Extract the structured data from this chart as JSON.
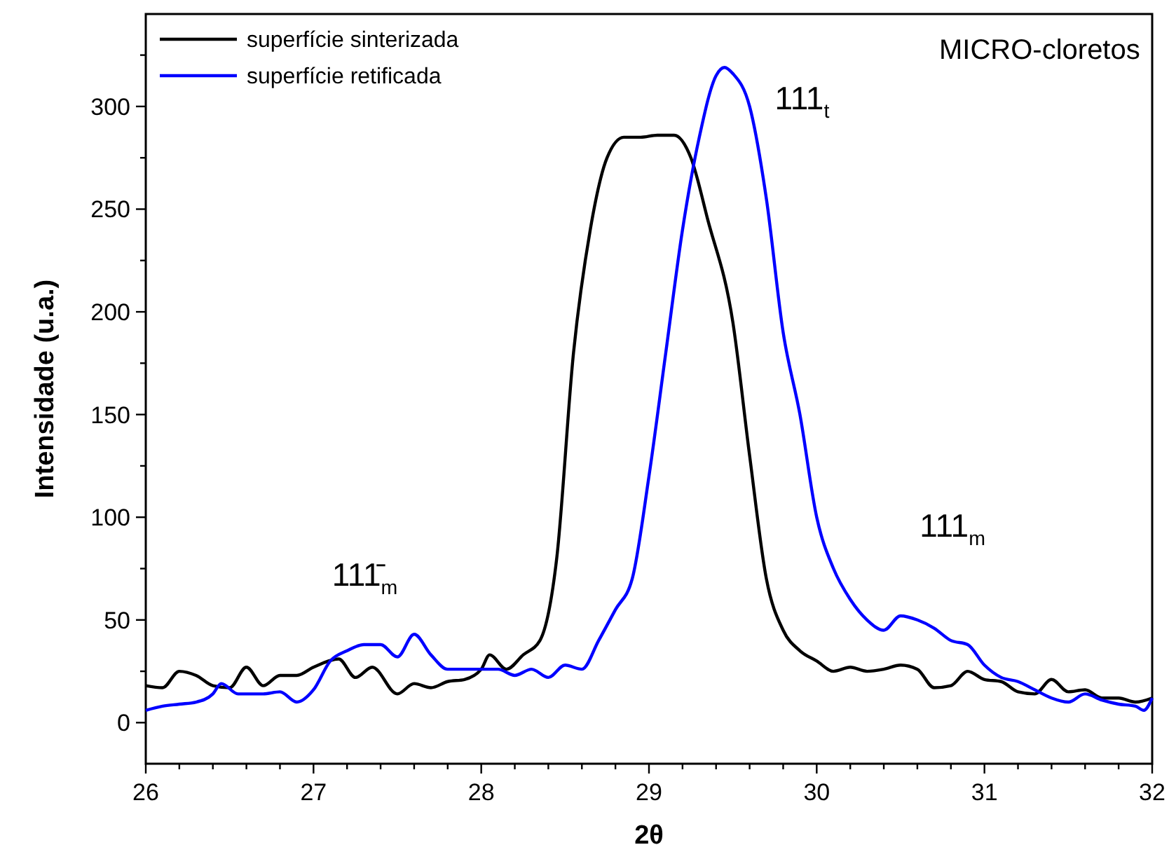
{
  "chart_data": {
    "type": "line",
    "xlabel": "2θ",
    "ylabel": "Intensidade (u.a.)",
    "xlim": [
      26,
      32
    ],
    "ylim": [
      -20,
      345
    ],
    "xticks": [
      26,
      {
        "value": 26.2,
        "label": null
      },
      {
        "value": 26.4,
        "label": null
      },
      {
        "value": 26.6,
        "label": null
      },
      {
        "value": 26.8,
        "label": null
      },
      27,
      {
        "value": 27.2,
        "label": null
      },
      {
        "value": 27.4,
        "label": null
      },
      {
        "value": 27.6,
        "label": null
      },
      {
        "value": 27.8,
        "label": null
      },
      28,
      {
        "value": 28.2,
        "label": null
      },
      {
        "value": 28.4,
        "label": null
      },
      {
        "value": 28.6,
        "label": null
      },
      {
        "value": 28.8,
        "label": null
      },
      29,
      {
        "value": 29.2,
        "label": null
      },
      {
        "value": 29.4,
        "label": null
      },
      {
        "value": 29.6,
        "label": null
      },
      {
        "value": 29.8,
        "label": null
      },
      30,
      {
        "value": 30.2,
        "label": null
      },
      {
        "value": 30.4,
        "label": null
      },
      {
        "value": 30.6,
        "label": null
      },
      {
        "value": 30.8,
        "label": null
      },
      31,
      {
        "value": 31.2,
        "label": null
      },
      {
        "value": 31.4,
        "label": null
      },
      {
        "value": 31.6,
        "label": null
      },
      {
        "value": 31.8,
        "label": null
      },
      32
    ],
    "yticks": [
      0,
      {
        "value": 25,
        "label": null
      },
      50,
      {
        "value": 75,
        "label": null
      },
      100,
      {
        "value": 125,
        "label": null
      },
      150,
      {
        "value": 175,
        "label": null
      },
      200,
      {
        "value": 225,
        "label": null
      },
      250,
      {
        "value": 275,
        "label": null
      },
      300,
      {
        "value": 325,
        "label": null
      }
    ],
    "grid": false,
    "legend": "top left",
    "line_style": "solid",
    "marker": "none",
    "series": [
      {
        "name": "superfície sinterizada",
        "color": "#000000",
        "x": [
          26,
          26.1,
          26.2,
          26.3,
          26.4,
          26.5,
          26.6,
          26.7,
          26.8,
          26.9,
          27.0,
          27.15,
          27.25,
          27.35,
          27.5,
          27.6,
          27.7,
          27.8,
          27.9,
          28.0,
          28.05,
          28.15,
          28.25,
          28.35,
          28.45,
          28.55,
          28.65,
          28.75,
          28.85,
          28.95,
          29.05,
          29.15,
          29.25,
          29.35,
          29.5,
          29.6,
          29.7,
          29.8,
          29.9,
          30.0,
          30.1,
          30.2,
          30.3,
          30.4,
          30.5,
          30.6,
          30.7,
          30.8,
          30.9,
          31.0,
          31.1,
          31.2,
          31.3,
          31.4,
          31.5,
          31.6,
          31.7,
          31.8,
          31.9,
          32.0
        ],
        "values": [
          18,
          17,
          25,
          23,
          18,
          17,
          27,
          18,
          23,
          23,
          27,
          31,
          22,
          27,
          14,
          19,
          17,
          20,
          21,
          26,
          33,
          26,
          33,
          40,
          80,
          180,
          240,
          275,
          285,
          285,
          286,
          286,
          275,
          245,
          195,
          130,
          70,
          45,
          35,
          30,
          25,
          27,
          25,
          26,
          28,
          26,
          17,
          18,
          25,
          21,
          20,
          15,
          14,
          21,
          15,
          16,
          12,
          12,
          10,
          12
        ]
      },
      {
        "name": "superfície retificada",
        "color": "#0000ff",
        "x": [
          26,
          26.1,
          26.2,
          26.3,
          26.4,
          26.45,
          26.55,
          26.7,
          26.8,
          26.9,
          27.0,
          27.1,
          27.2,
          27.3,
          27.4,
          27.5,
          27.6,
          27.7,
          27.8,
          27.9,
          28.0,
          28.1,
          28.2,
          28.3,
          28.4,
          28.5,
          28.6,
          28.7,
          28.8,
          28.9,
          29.0,
          29.1,
          29.2,
          29.3,
          29.4,
          29.45,
          29.5,
          29.6,
          29.7,
          29.8,
          29.9,
          30.0,
          30.1,
          30.2,
          30.3,
          30.4,
          30.5,
          30.6,
          30.7,
          30.8,
          30.9,
          31.0,
          31.1,
          31.2,
          31.3,
          31.4,
          31.5,
          31.6,
          31.7,
          31.8,
          31.9,
          31.95,
          32
        ],
        "values": [
          6,
          8,
          9,
          10,
          14,
          19,
          14,
          14,
          15,
          10,
          16,
          30,
          35,
          38,
          38,
          32,
          43,
          33,
          26,
          26,
          26,
          26,
          23,
          26,
          22,
          28,
          26,
          40,
          55,
          70,
          120,
          180,
          240,
          285,
          315,
          319,
          316,
          300,
          255,
          190,
          150,
          100,
          75,
          60,
          50,
          45,
          52,
          50,
          46,
          40,
          38,
          28,
          22,
          20,
          16,
          12,
          10,
          14,
          11,
          9,
          8,
          6,
          12
        ]
      }
    ],
    "annotations": [
      "111$_{t}$",
      "MICRO-cloretos",
      "111̄$_{m}$",
      "111$_{m}$"
    ]
  }
}
